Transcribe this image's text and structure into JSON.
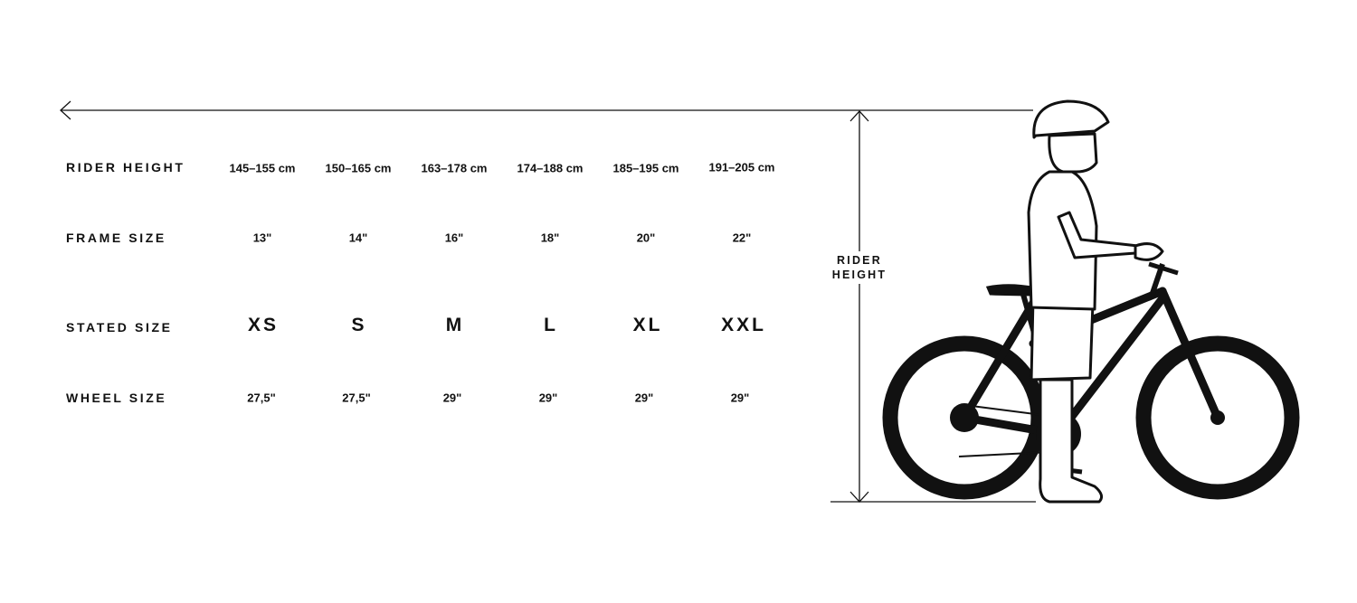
{
  "rows": [
    {
      "label": "RIDER HEIGHT",
      "values": [
        "145–155 cm",
        "150–165 cm",
        "163–178 cm",
        "174–188 cm",
        "185–195 cm",
        "191–205 cm"
      ]
    },
    {
      "label": "FRAME SIZE",
      "values": [
        "13\"",
        "14\"",
        "16\"",
        "18\"",
        "20\"",
        "22\""
      ]
    },
    {
      "label": "STATED SIZE",
      "values": [
        "XS",
        "S",
        "M",
        "L",
        "XL",
        "XXL"
      ]
    },
    {
      "label": "WHEEL SIZE",
      "values": [
        "27,5\"",
        "27,5\"",
        "29\"",
        "29\"",
        "29\"",
        "29\""
      ]
    }
  ],
  "diagram": {
    "rider_height_line1": "RIDER",
    "rider_height_line2": "HEIGHT"
  },
  "colors": {
    "ink": "#111111",
    "background": "#ffffff"
  }
}
